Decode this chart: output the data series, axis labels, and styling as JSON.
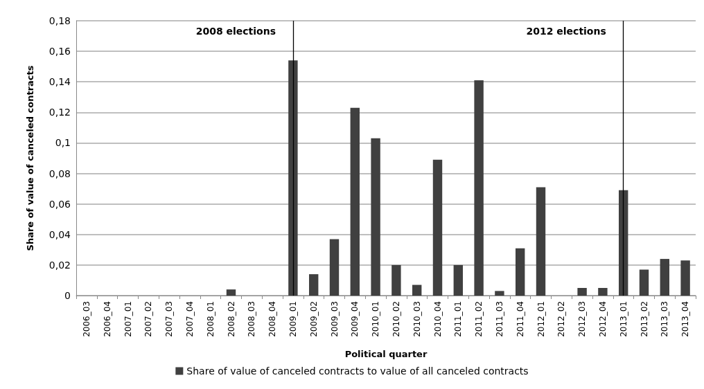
{
  "chart_data": {
    "type": "bar",
    "xlabel": "Political quarter",
    "ylabel": "Share of value of canceled contracts",
    "categories": [
      "2006_03",
      "2006_04",
      "2007_01",
      "2007_02",
      "2007_03",
      "2007_04",
      "2008_01",
      "2008_02",
      "2008_03",
      "2008_04",
      "2009_01",
      "2009_02",
      "2009_03",
      "2009_04",
      "2010_01",
      "2010_02",
      "2010_03",
      "2010_04",
      "2011_01",
      "2011_02",
      "2011_03",
      "2011_04",
      "2012_01",
      "2012_02",
      "2012_03",
      "2012_04",
      "2013_01",
      "2013_02",
      "2013_03",
      "2013_04"
    ],
    "series": [
      {
        "name": "Share of value of canceled contracts to value of all canceled contracts",
        "color": "#404040",
        "values": [
          0,
          0,
          0,
          0,
          0,
          0,
          0,
          0.004,
          0,
          0,
          0.154,
          0.014,
          0.037,
          0.123,
          0.103,
          0.02,
          0.007,
          0.089,
          0.02,
          0.141,
          0.003,
          0.031,
          0.071,
          0,
          0.005,
          0.005,
          0.069,
          0.017,
          0.024,
          0.023
        ]
      }
    ],
    "ylim": [
      0,
      0.18
    ],
    "yticks": [
      0,
      {
        "value": 0.02,
        "label": "0,02"
      },
      {
        "value": 0.04,
        "label": "0,04"
      },
      {
        "value": 0.06,
        "label": "0,06"
      },
      {
        "value": 0.08,
        "label": "0,08"
      },
      {
        "value": 0.1,
        "label": "0,1"
      },
      {
        "value": 0.12,
        "label": "0,12"
      },
      {
        "value": 0.14,
        "label": "0,14"
      },
      {
        "value": 0.16,
        "label": "0,16"
      },
      {
        "value": 0.18,
        "label": "0,18"
      }
    ],
    "ref_lines": [
      {
        "axis": "x",
        "value": "2009_01",
        "label": "2008 elections",
        "color": "#000000"
      },
      {
        "axis": "x",
        "value": "2013_01",
        "label": "2012 elections",
        "color": "#000000"
      }
    ],
    "grid": "y",
    "legend": "bottom"
  }
}
